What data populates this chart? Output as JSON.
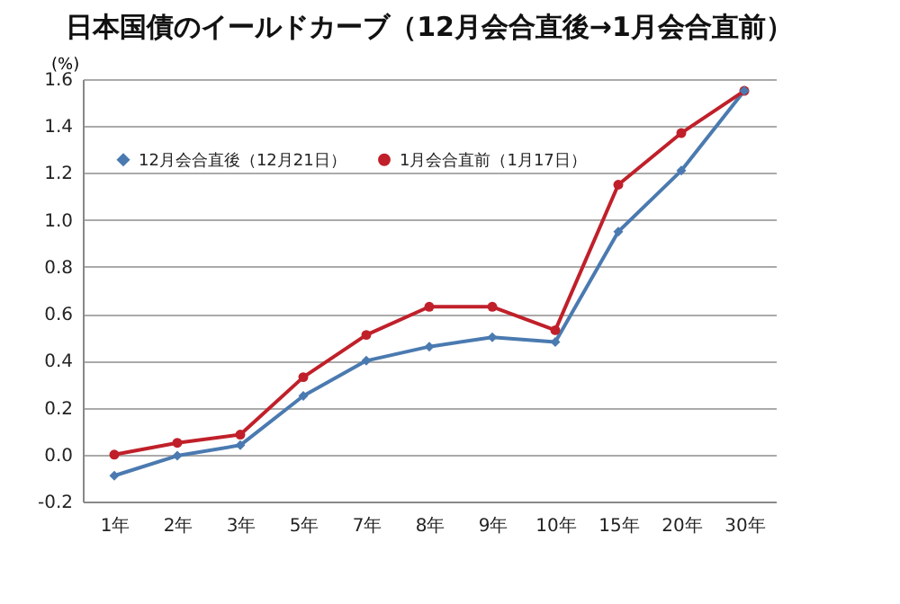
{
  "chart_data": {
    "type": "line",
    "title": "日本国債のイールドカーブ（12月会合直後→1月会合直前）",
    "ylabel": "(%)",
    "categories": [
      "1年",
      "2年",
      "3年",
      "5年",
      "7年",
      "8年",
      "9年",
      "10年",
      "15年",
      "20年",
      "30年"
    ],
    "series": [
      {
        "name": "12月会合直後（12月21日）",
        "color": "#4a7ab0",
        "marker": "diamond",
        "values": [
          -0.09,
          -0.005,
          0.04,
          0.25,
          0.4,
          0.46,
          0.5,
          0.48,
          0.95,
          1.21,
          1.55
        ]
      },
      {
        "name": "1月会合直前（1月17日）",
        "color": "#c0202a",
        "marker": "circle",
        "values": [
          0.0,
          0.05,
          0.085,
          0.33,
          0.51,
          0.63,
          0.63,
          0.53,
          1.15,
          1.37,
          1.55
        ]
      }
    ],
    "ylim": [
      -0.2,
      1.6
    ],
    "yticks": [
      {
        "value": -0.2,
        "label": "-0.2"
      },
      {
        "value": 0,
        "label": "0.0"
      },
      {
        "value": 0.2,
        "label": "0.2"
      },
      {
        "value": 0.4,
        "label": "0.4"
      },
      {
        "value": 0.6,
        "label": "0.6"
      },
      {
        "value": 0.8,
        "label": "0.8"
      },
      {
        "value": 1.0,
        "label": "1.0"
      },
      {
        "value": 1.2,
        "label": "1.2"
      },
      {
        "value": 1.4,
        "label": "1.4"
      },
      {
        "value": 1.6,
        "label": "1.6"
      }
    ],
    "grid": "y",
    "legend": "top left",
    "line_style": "solid"
  }
}
